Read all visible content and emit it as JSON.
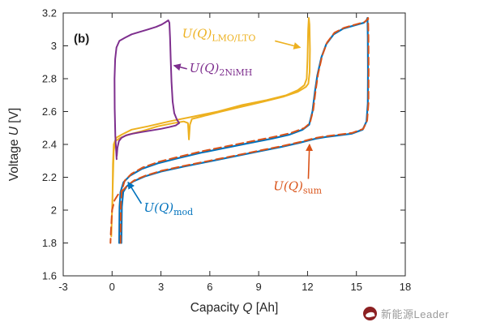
{
  "watermark": {
    "text": "新能源Leader"
  },
  "chart_data": {
    "type": "line",
    "title": "",
    "panel_label": {
      "text": "(b)",
      "x": -2.35,
      "y": 3.02
    },
    "xlabel": {
      "pre": "Capacity ",
      "var": "Q",
      "post": " [Ah]"
    },
    "ylabel": {
      "pre": "Voltage ",
      "var": "U",
      "post": " [V]"
    },
    "xlim": [
      -3,
      18
    ],
    "ylim": [
      1.6,
      3.2
    ],
    "grid": false,
    "legend": "none (inline arrow annotations)",
    "xticks": [
      -3,
      0,
      3,
      6,
      9,
      12,
      15,
      18
    ],
    "xtick_labels": [
      "-3",
      "0",
      "3",
      "6",
      "9",
      "12",
      "15",
      "18"
    ],
    "yticks": [
      1.6,
      1.8,
      2.0,
      2.2,
      2.4,
      2.6,
      2.8,
      3.0,
      3.2
    ],
    "ytick_labels": [
      "1.6",
      "1.8",
      "2",
      "2.2",
      "2.4",
      "2.6",
      "2.8",
      "3",
      "3.2"
    ],
    "series": [
      {
        "id": "lmo_lto",
        "name": "U(Q)_LMO/LTO",
        "color": "#EDB120",
        "style": "solid",
        "width": 2,
        "points": [
          [
            0.02,
            2.02
          ],
          [
            0.05,
            2.28
          ],
          [
            0.1,
            2.4
          ],
          [
            0.25,
            2.44
          ],
          [
            0.6,
            2.46
          ],
          [
            1.2,
            2.49
          ],
          [
            2.2,
            2.51
          ],
          [
            3.5,
            2.54
          ],
          [
            5.0,
            2.57
          ],
          [
            6.5,
            2.6
          ],
          [
            8.0,
            2.64
          ],
          [
            9.5,
            2.67
          ],
          [
            10.7,
            2.7
          ],
          [
            11.4,
            2.73
          ],
          [
            11.8,
            2.76
          ],
          [
            11.95,
            2.8
          ],
          [
            12.0,
            2.92
          ],
          [
            12.04,
            3.1
          ],
          [
            12.08,
            3.17
          ],
          [
            12.12,
            3.13
          ],
          [
            12.15,
            2.98
          ],
          [
            12.13,
            2.84
          ],
          [
            12.05,
            2.77
          ],
          [
            11.9,
            2.75
          ],
          [
            11.4,
            2.72
          ],
          [
            10.5,
            2.69
          ],
          [
            9.3,
            2.66
          ],
          [
            8.0,
            2.63
          ],
          [
            6.7,
            2.6
          ],
          [
            5.5,
            2.57
          ],
          [
            4.9,
            2.555
          ],
          [
            4.78,
            2.52
          ],
          [
            4.72,
            2.43
          ],
          [
            4.66,
            2.53
          ],
          [
            4.4,
            2.54
          ],
          [
            3.8,
            2.53
          ],
          [
            2.8,
            2.51
          ],
          [
            1.8,
            2.48
          ],
          [
            1.0,
            2.46
          ],
          [
            0.5,
            2.44
          ],
          [
            0.2,
            2.42
          ],
          [
            0.1,
            2.36
          ],
          [
            0.05,
            2.18
          ],
          [
            0.0,
            2.0
          ],
          [
            -0.05,
            1.84
          ]
        ]
      },
      {
        "id": "nimh",
        "name": "U(Q)_2NiMH",
        "color": "#7E2F8E",
        "style": "solid",
        "width": 2,
        "points": [
          [
            0.28,
            2.31
          ],
          [
            0.2,
            2.45
          ],
          [
            0.16,
            2.62
          ],
          [
            0.15,
            2.8
          ],
          [
            0.19,
            2.92
          ],
          [
            0.27,
            2.99
          ],
          [
            0.45,
            3.03
          ],
          [
            0.8,
            3.05
          ],
          [
            1.2,
            3.07
          ],
          [
            1.7,
            3.085
          ],
          [
            2.2,
            3.1
          ],
          [
            2.7,
            3.115
          ],
          [
            3.05,
            3.13
          ],
          [
            3.3,
            3.145
          ],
          [
            3.45,
            3.155
          ],
          [
            3.52,
            3.14
          ],
          [
            3.56,
            3.05
          ],
          [
            3.6,
            2.92
          ],
          [
            3.65,
            2.78
          ],
          [
            3.72,
            2.66
          ],
          [
            3.82,
            2.59
          ],
          [
            3.98,
            2.55
          ],
          [
            4.12,
            2.53
          ],
          [
            3.9,
            2.515
          ],
          [
            3.5,
            2.505
          ],
          [
            3.0,
            2.495
          ],
          [
            2.4,
            2.485
          ],
          [
            1.8,
            2.475
          ],
          [
            1.25,
            2.465
          ],
          [
            0.85,
            2.455
          ],
          [
            0.58,
            2.44
          ],
          [
            0.42,
            2.42
          ],
          [
            0.33,
            2.38
          ],
          [
            0.29,
            2.33
          ]
        ]
      },
      {
        "id": "mod",
        "name": "U(Q)_mod",
        "color": "#0072BD",
        "style": "solid",
        "width": 2.2,
        "points": [
          [
            0.44,
            1.8
          ],
          [
            0.46,
            2.02
          ],
          [
            0.52,
            2.11
          ],
          [
            0.7,
            2.17
          ],
          [
            1.1,
            2.21
          ],
          [
            1.8,
            2.25
          ],
          [
            2.8,
            2.285
          ],
          [
            4.0,
            2.315
          ],
          [
            5.5,
            2.35
          ],
          [
            7.0,
            2.38
          ],
          [
            8.5,
            2.41
          ],
          [
            9.8,
            2.435
          ],
          [
            10.9,
            2.46
          ],
          [
            11.7,
            2.49
          ],
          [
            12.1,
            2.52
          ],
          [
            12.3,
            2.6
          ],
          [
            12.45,
            2.72
          ],
          [
            12.6,
            2.82
          ],
          [
            12.85,
            2.93
          ],
          [
            13.15,
            3.01
          ],
          [
            13.6,
            3.07
          ],
          [
            14.2,
            3.105
          ],
          [
            14.9,
            3.125
          ],
          [
            15.45,
            3.14
          ],
          [
            15.62,
            3.155
          ],
          [
            15.68,
            3.17
          ],
          [
            15.7,
            3.05
          ],
          [
            15.71,
            2.85
          ],
          [
            15.7,
            2.65
          ],
          [
            15.62,
            2.54
          ],
          [
            15.38,
            2.49
          ],
          [
            14.7,
            2.465
          ],
          [
            13.9,
            2.455
          ],
          [
            13.1,
            2.445
          ],
          [
            12.5,
            2.435
          ],
          [
            12.1,
            2.425
          ],
          [
            11.5,
            2.41
          ],
          [
            10.4,
            2.385
          ],
          [
            8.9,
            2.355
          ],
          [
            7.4,
            2.325
          ],
          [
            5.9,
            2.295
          ],
          [
            4.4,
            2.265
          ],
          [
            3.0,
            2.235
          ],
          [
            2.0,
            2.205
          ],
          [
            1.3,
            2.175
          ],
          [
            0.9,
            2.145
          ],
          [
            0.68,
            2.11
          ],
          [
            0.6,
            2.02
          ],
          [
            0.57,
            1.8
          ]
        ]
      },
      {
        "id": "sum",
        "name": "U(Q)_sum",
        "color": "#D95319",
        "style": "dashed",
        "width": 2,
        "points": [
          [
            0.52,
            1.8
          ],
          [
            0.54,
            2.03
          ],
          [
            0.6,
            2.12
          ],
          [
            0.78,
            2.18
          ],
          [
            1.18,
            2.22
          ],
          [
            1.88,
            2.26
          ],
          [
            2.88,
            2.295
          ],
          [
            4.1,
            2.325
          ],
          [
            5.6,
            2.36
          ],
          [
            7.1,
            2.39
          ],
          [
            8.6,
            2.42
          ],
          [
            9.9,
            2.445
          ],
          [
            11.0,
            2.47
          ],
          [
            11.8,
            2.5
          ],
          [
            12.15,
            2.53
          ],
          [
            12.35,
            2.61
          ],
          [
            12.5,
            2.73
          ],
          [
            12.65,
            2.83
          ],
          [
            12.9,
            2.94
          ],
          [
            13.2,
            3.02
          ],
          [
            13.65,
            3.08
          ],
          [
            14.25,
            3.11
          ],
          [
            14.95,
            3.13
          ],
          [
            15.5,
            3.145
          ],
          [
            15.66,
            3.16
          ],
          [
            15.72,
            3.17
          ],
          [
            15.74,
            3.05
          ],
          [
            15.75,
            2.85
          ],
          [
            15.74,
            2.65
          ],
          [
            15.66,
            2.545
          ],
          [
            15.42,
            2.495
          ],
          [
            14.74,
            2.47
          ],
          [
            13.94,
            2.46
          ],
          [
            13.14,
            2.45
          ],
          [
            12.54,
            2.44
          ],
          [
            12.14,
            2.43
          ],
          [
            11.54,
            2.415
          ],
          [
            10.44,
            2.39
          ],
          [
            8.94,
            2.36
          ],
          [
            7.44,
            2.33
          ],
          [
            5.94,
            2.3
          ],
          [
            4.44,
            2.27
          ],
          [
            3.04,
            2.24
          ],
          [
            2.04,
            2.21
          ],
          [
            1.34,
            2.18
          ],
          [
            0.94,
            2.15
          ],
          [
            0.66,
            2.12
          ],
          [
            0.4,
            2.1
          ],
          [
            0.15,
            2.06
          ],
          [
            0.0,
            2.0
          ],
          [
            -0.08,
            1.86
          ],
          [
            -0.1,
            1.8
          ]
        ]
      }
    ],
    "annotations": [
      {
        "id": "label-lmo-lto",
        "main": "U(Q)",
        "sub": "LMO/LTO",
        "x": 4.3,
        "y": 3.05,
        "color": "#EDB120",
        "arrow": {
          "x1": 10.0,
          "y1": 3.03,
          "x2": 11.55,
          "y2": 2.99
        }
      },
      {
        "id": "label-2nimh",
        "main": "U(Q)",
        "sub": "2NiMH",
        "x": 4.75,
        "y": 2.84,
        "color": "#7E2F8E",
        "arrow": {
          "x1": 4.6,
          "y1": 2.86,
          "x2": 3.8,
          "y2": 2.88
        }
      },
      {
        "id": "label-sum",
        "main": "U(Q)",
        "sub": "sum",
        "x": 9.9,
        "y": 2.12,
        "color": "#D95319",
        "arrow": {
          "x1": 12.05,
          "y1": 2.19,
          "x2": 12.12,
          "y2": 2.4
        }
      },
      {
        "id": "label-mod",
        "main": "U(Q)",
        "sub": "mod",
        "x": 1.95,
        "y": 1.99,
        "color": "#0072BD",
        "arrow": {
          "x1": 1.8,
          "y1": 2.04,
          "x2": 0.98,
          "y2": 2.17
        }
      }
    ]
  }
}
